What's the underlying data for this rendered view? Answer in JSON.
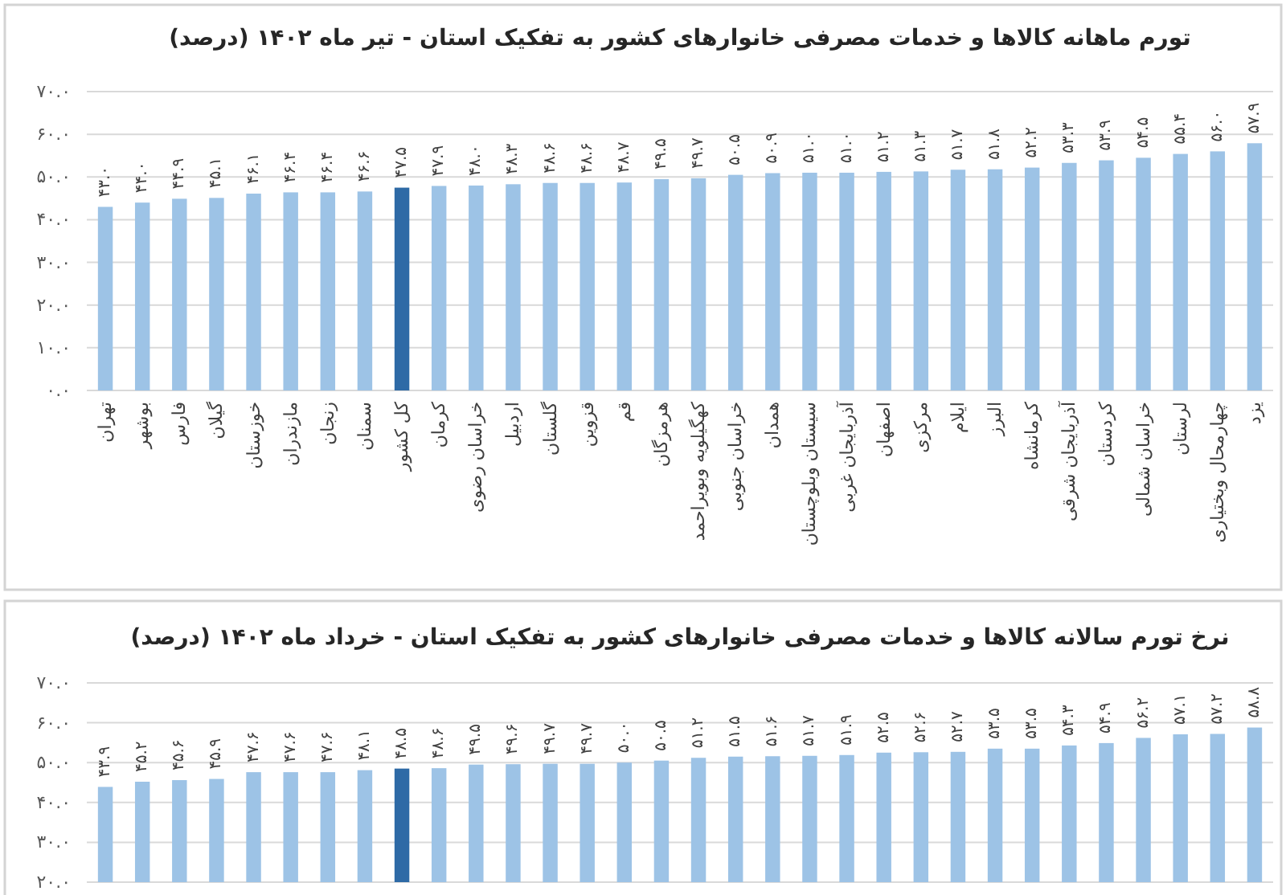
{
  "chart_data": [
    {
      "type": "bar",
      "title": "تورم ماهانه کالاها و خدمات مصرفی خانوارهای کشور به تفکیک استان - تیر ماه ۱۴۰۲ (درصد)",
      "categories": [
        "تهران",
        "بوشهر",
        "فارس",
        "گیلان",
        "خوزستان",
        "مازندران",
        "زنجان",
        "سمنان",
        "کل کشور",
        "کرمان",
        "خراسان رضوی",
        "اردبیل",
        "گلستان",
        "قزوین",
        "قم",
        "هرمزگان",
        "کهگیلویه وبویراحمد",
        "خراسان جنوبی",
        "همدان",
        "سیستان وبلوچستان",
        "آذربایجان غربی",
        "اصفهان",
        "مرکزی",
        "ایلام",
        "البرز",
        "کرمانشاه",
        "آذربایجان شرقی",
        "کردستان",
        "خراسان شمالی",
        "لرستان",
        "چهارمحال وبختیاری",
        "یزد"
      ],
      "values": [
        43.0,
        44.0,
        44.9,
        45.1,
        46.1,
        46.4,
        46.4,
        46.6,
        47.5,
        47.9,
        48.0,
        48.3,
        48.6,
        48.6,
        48.7,
        49.5,
        49.7,
        50.5,
        50.9,
        51.0,
        51.0,
        51.2,
        51.3,
        51.7,
        51.8,
        52.2,
        53.3,
        53.9,
        54.5,
        55.4,
        56.0,
        57.9
      ],
      "value_labels": [
        "۴۳.۰",
        "۴۴.۰",
        "۴۴.۹",
        "۴۵.۱",
        "۴۶.۱",
        "۴۶.۴",
        "۴۶.۴",
        "۴۶.۶",
        "۴۷.۵",
        "۴۷.۹",
        "۴۸.۰",
        "۴۸.۳",
        "۴۸.۶",
        "۴۸.۶",
        "۴۸.۷",
        "۴۹.۵",
        "۴۹.۷",
        "۵۰.۵",
        "۵۰.۹",
        "۵۱.۰",
        "۵۱.۰",
        "۵۱.۲",
        "۵۱.۳",
        "۵۱.۷",
        "۵۱.۸",
        "۵۲.۲",
        "۵۳.۳",
        "۵۳.۹",
        "۵۴.۵",
        "۵۵.۴",
        "۵۶.۰",
        "۵۷.۹"
      ],
      "colors": [
        "#9dc3e6",
        "#9dc3e6",
        "#9dc3e6",
        "#9dc3e6",
        "#9dc3e6",
        "#9dc3e6",
        "#9dc3e6",
        "#9dc3e6",
        "#2e6aa6",
        "#9dc3e6",
        "#9dc3e6",
        "#9dc3e6",
        "#9dc3e6",
        "#9dc3e6",
        "#9dc3e6",
        "#9dc3e6",
        "#9dc3e6",
        "#9dc3e6",
        "#9dc3e6",
        "#9dc3e6",
        "#9dc3e6",
        "#9dc3e6",
        "#9dc3e6",
        "#9dc3e6",
        "#9dc3e6",
        "#9dc3e6",
        "#9dc3e6",
        "#9dc3e6",
        "#9dc3e6",
        "#9dc3e6",
        "#9dc3e6",
        "#9dc3e6"
      ],
      "ylim": [
        0,
        70
      ],
      "yticks": [
        {
          "value": 0,
          "label": "۰.۰"
        },
        {
          "value": 10,
          "label": "۱۰.۰"
        },
        {
          "value": 20,
          "label": "۲۰.۰"
        },
        {
          "value": 30,
          "label": "۳۰.۰"
        },
        {
          "value": 40,
          "label": "۴۰.۰"
        },
        {
          "value": 50,
          "label": "۵۰.۰"
        },
        {
          "value": 60,
          "label": "۶۰.۰"
        },
        {
          "value": 70,
          "label": "۷۰.۰"
        }
      ],
      "grid": "y"
    },
    {
      "type": "bar",
      "title": "نرخ تورم سالانه کالاها و خدمات مصرفی خانوارهای کشور به تفکیک استان - خرداد ماه ۱۴۰۲ (درصد)",
      "categories": [
        null,
        null,
        null,
        null,
        null,
        null,
        null,
        null,
        null,
        null,
        null,
        null,
        null,
        null,
        null,
        null,
        null,
        null,
        null,
        null,
        null,
        null,
        null,
        null,
        null,
        null,
        null,
        null,
        null,
        null,
        null,
        null
      ],
      "values": [
        43.9,
        45.2,
        45.6,
        45.9,
        47.6,
        47.6,
        47.6,
        48.1,
        48.5,
        48.6,
        49.5,
        49.6,
        49.7,
        49.7,
        50.0,
        50.5,
        51.2,
        51.5,
        51.6,
        51.7,
        51.9,
        52.5,
        52.6,
        52.7,
        53.5,
        53.5,
        54.3,
        54.9,
        56.2,
        57.1,
        57.2,
        58.8
      ],
      "value_labels": [
        "۴۳.۹",
        "۴۵.۲",
        "۴۵.۶",
        "۴۵.۹",
        "۴۷.۶",
        "۴۷.۶",
        "۴۷.۶",
        "۴۸.۱",
        "۴۸.۵",
        "۴۸.۶",
        "۴۹.۵",
        "۴۹.۶",
        "۴۹.۷",
        "۴۹.۷",
        "۵۰.۰",
        "۵۰.۵",
        "۵۱.۲",
        "۵۱.۵",
        "۵۱.۶",
        "۵۱.۷",
        "۵۱.۹",
        "۵۲.۵",
        "۵۲.۶",
        "۵۲.۷",
        "۵۳.۵",
        "۵۳.۵",
        "۵۴.۳",
        "۵۴.۹",
        "۵۶.۲",
        "۵۷.۱",
        "۵۷.۲",
        "۵۸.۸"
      ],
      "colors": [
        "#9dc3e6",
        "#9dc3e6",
        "#9dc3e6",
        "#9dc3e6",
        "#9dc3e6",
        "#9dc3e6",
        "#9dc3e6",
        "#9dc3e6",
        "#2e6aa6",
        "#9dc3e6",
        "#9dc3e6",
        "#9dc3e6",
        "#9dc3e6",
        "#9dc3e6",
        "#9dc3e6",
        "#9dc3e6",
        "#9dc3e6",
        "#9dc3e6",
        "#9dc3e6",
        "#9dc3e6",
        "#9dc3e6",
        "#9dc3e6",
        "#9dc3e6",
        "#9dc3e6",
        "#9dc3e6",
        "#9dc3e6",
        "#9dc3e6",
        "#9dc3e6",
        "#9dc3e6",
        "#9dc3e6",
        "#9dc3e6",
        "#9dc3e6"
      ],
      "ylim": [
        20,
        70
      ],
      "yticks": [
        {
          "value": 20,
          "label": "۲۰.۰"
        },
        {
          "value": 30,
          "label": "۳۰.۰"
        },
        {
          "value": 40,
          "label": "۴۰.۰"
        },
        {
          "value": 50,
          "label": "۵۰.۰"
        },
        {
          "value": 60,
          "label": "۶۰.۰"
        },
        {
          "value": 70,
          "label": "۷۰.۰"
        }
      ],
      "grid": "y"
    }
  ]
}
